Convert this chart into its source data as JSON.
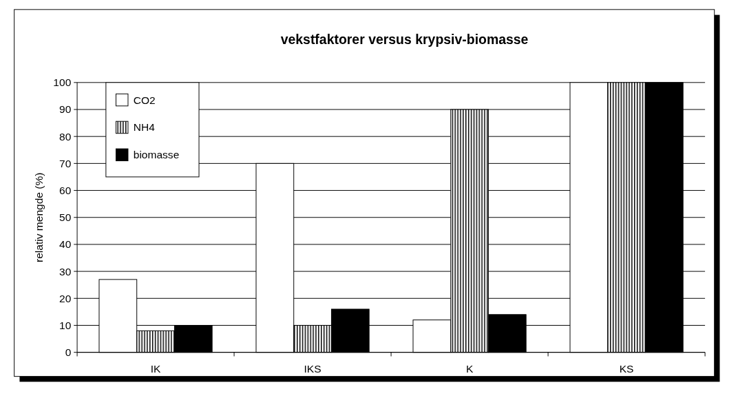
{
  "chart_data": {
    "type": "bar",
    "title": "vekstfaktorer versus krypsiv-biomasse",
    "ylabel": "relativ mengde (%)",
    "categories": [
      "IK",
      "IKS",
      "K",
      "KS"
    ],
    "series": [
      {
        "name": "CO2",
        "color": "#ffffff",
        "values": [
          27,
          70,
          12,
          100
        ]
      },
      {
        "name": "NH4",
        "color": "#000000",
        "values": [
          8,
          10,
          90,
          100
        ]
      },
      {
        "name": "biomasse",
        "color": "#000000",
        "values": [
          10,
          16,
          14,
          100
        ]
      }
    ],
    "ylim": [
      0,
      100
    ],
    "yticks": [
      0,
      10,
      20,
      30,
      40,
      50,
      60,
      70,
      80,
      90,
      100
    ],
    "grid": "y",
    "legend": "top left"
  }
}
